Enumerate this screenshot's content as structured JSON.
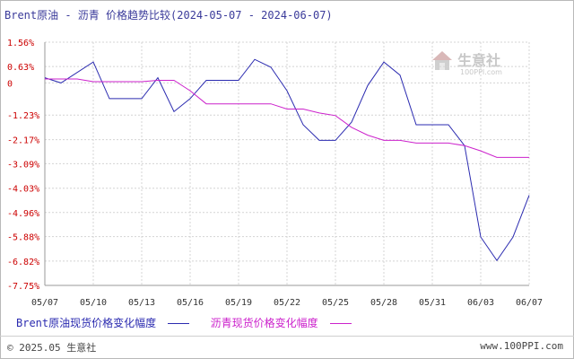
{
  "title": "Brent原油 - 沥青 价格趋势比较(2024-05-07 - 2024-06-07)",
  "chart_data": {
    "type": "line",
    "title": "Brent原油 - 沥青 价格趋势比较(2024-05-07 - 2024-06-07)",
    "y_ticks": [
      "1.56%",
      "0.63%",
      "0",
      "-1.23%",
      "-2.17%",
      "-3.09%",
      "-4.03%",
      "-4.96%",
      "-5.88%",
      "-6.82%",
      "-7.75%"
    ],
    "y_values": [
      1.56,
      0.63,
      0,
      -1.23,
      -2.17,
      -3.09,
      -4.03,
      -4.96,
      -5.88,
      -6.82,
      -7.75
    ],
    "x_ticks": [
      "05/07",
      "05/10",
      "05/13",
      "05/16",
      "05/19",
      "05/22",
      "05/25",
      "05/28",
      "05/31",
      "06/03",
      "06/07"
    ],
    "x_tick_days": [
      0,
      3,
      6,
      9,
      12,
      15,
      18,
      21,
      24,
      27,
      30
    ],
    "ylim": [
      -7.75,
      1.56
    ],
    "grid": true,
    "legend_position": "bottom",
    "series": [
      {
        "name": "Brent原油现货价格变化幅度",
        "color": "#2b2bb0",
        "x": [
          0,
          1,
          3,
          4,
          6,
          7,
          8,
          9,
          10,
          12,
          13,
          14,
          15,
          16,
          17,
          18,
          19,
          20,
          21,
          22,
          23,
          25,
          26,
          27,
          28,
          29,
          30
        ],
        "y": [
          0.2,
          0.0,
          0.8,
          -0.6,
          -0.6,
          0.2,
          -1.1,
          -0.6,
          0.1,
          0.1,
          0.9,
          0.6,
          -0.3,
          -1.6,
          -2.2,
          -2.2,
          -1.5,
          -0.1,
          0.8,
          0.3,
          -1.6,
          -1.6,
          -2.4,
          -5.9,
          -6.8,
          -5.9,
          -4.3
        ]
      },
      {
        "name": "沥青现货价格变化幅度",
        "color": "#cc22cc",
        "x": [
          0,
          1,
          2,
          3,
          4,
          5,
          6,
          7,
          8,
          9,
          10,
          11,
          12,
          13,
          14,
          15,
          16,
          17,
          18,
          19,
          20,
          21,
          22,
          23,
          24,
          25,
          26,
          27,
          28,
          29,
          30
        ],
        "y": [
          0.15,
          0.15,
          0.15,
          0.05,
          0.05,
          0.05,
          0.05,
          0.1,
          0.1,
          -0.3,
          -0.8,
          -0.8,
          -0.8,
          -0.8,
          -0.8,
          -1.0,
          -1.0,
          -1.15,
          -1.25,
          -1.7,
          -2.0,
          -2.2,
          -2.2,
          -2.3,
          -2.3,
          -2.3,
          -2.4,
          -2.6,
          -2.85,
          -2.85,
          -2.85
        ]
      }
    ]
  },
  "legend": {
    "item1": "Brent原油现货价格变化幅度",
    "item2": "沥青现货价格变化幅度"
  },
  "footer": {
    "copyright": "© 2025.05 生意社",
    "url": "www.100PPI.com"
  },
  "watermark": {
    "name": "生意社",
    "url": "100PPI.com"
  }
}
